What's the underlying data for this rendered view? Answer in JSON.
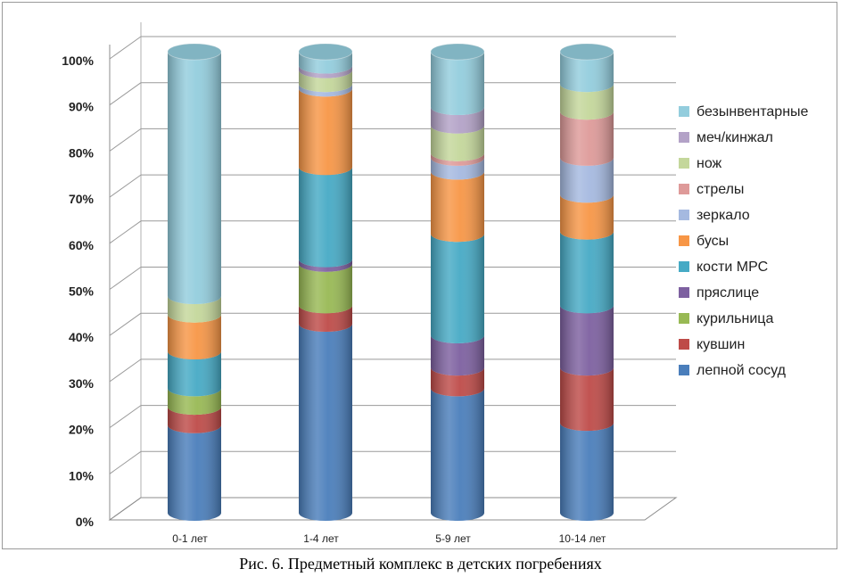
{
  "caption": "Рис. 6. Предметный комплекс в детских погребениях",
  "chart_data": {
    "type": "bar",
    "stacked": true,
    "three_d": true,
    "shape": "cylinder",
    "percent_stacked": true,
    "categories": [
      "0-1 лет",
      "1-4 лет",
      "5-9 лет",
      "10-14 лет"
    ],
    "y_ticks": [
      "0%",
      "10%",
      "20%",
      "30%",
      "40%",
      "50%",
      "60%",
      "70%",
      "80%",
      "90%",
      "100%"
    ],
    "ylim": [
      0,
      100
    ],
    "grid": true,
    "legend_position": "right",
    "series": [
      {
        "name": "лепной сосуд",
        "color": "#4a7ebb",
        "values": [
          19,
          41,
          27,
          19.5
        ]
      },
      {
        "name": "кувшин",
        "color": "#be4b48",
        "values": [
          4,
          4,
          4.5,
          12
        ]
      },
      {
        "name": "курильница",
        "color": "#98b954",
        "values": [
          4,
          9,
          0,
          0
        ]
      },
      {
        "name": "пряслице",
        "color": "#7d60a0",
        "values": [
          0,
          1,
          7,
          13.5
        ]
      },
      {
        "name": "кости МРС",
        "color": "#46aac5",
        "values": [
          8,
          20,
          22,
          16
        ]
      },
      {
        "name": "бусы",
        "color": "#f79646",
        "values": [
          8,
          17,
          13.5,
          8
        ]
      },
      {
        "name": "зеркало",
        "color": "#a5b9e0",
        "values": [
          0,
          1,
          3,
          8
        ]
      },
      {
        "name": "стрелы",
        "color": "#de9a99",
        "values": [
          0,
          0,
          1,
          10
        ]
      },
      {
        "name": "нож",
        "color": "#c4d79b",
        "values": [
          4,
          3,
          6,
          6
        ]
      },
      {
        "name": "меч/кинжал",
        "color": "#b3a2c7",
        "values": [
          0,
          1,
          4,
          0
        ]
      },
      {
        "name": "безынвентарные",
        "color": "#93cddd",
        "values": [
          53,
          3,
          12,
          7
        ]
      }
    ]
  }
}
